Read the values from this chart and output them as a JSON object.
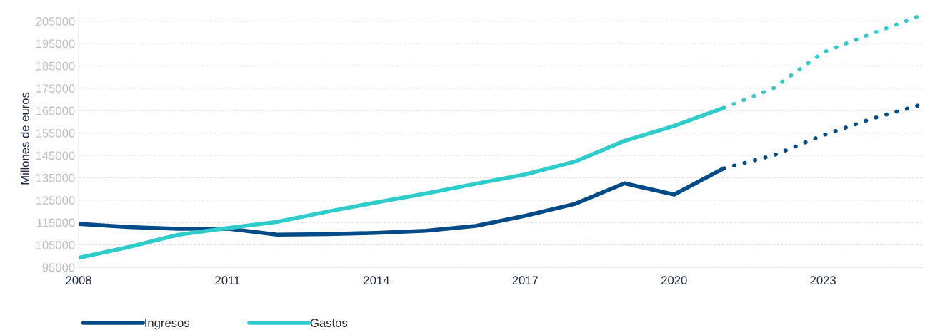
{
  "chart_data": {
    "type": "line",
    "ylabel": "Millones de euros",
    "xlim": [
      2008,
      2025
    ],
    "xticks": [
      2008,
      2011,
      2014,
      2017,
      2020,
      2023
    ],
    "ylim": [
      95000,
      210000
    ],
    "yticks": [
      95000,
      105000,
      115000,
      125000,
      135000,
      145000,
      155000,
      165000,
      175000,
      185000,
      195000,
      205000
    ],
    "grid": "y",
    "legend": "bottom left",
    "marker": "none",
    "series": [
      {
        "name": "Ingresos",
        "color": "#004a87",
        "line_style": "solid",
        "x": [
          2008,
          2009,
          2010,
          2011,
          2012,
          2013,
          2014,
          2015,
          2016,
          2017,
          2018,
          2019,
          2020,
          2021
        ],
        "values": [
          114400,
          113000,
          112200,
          112300,
          109600,
          109800,
          110400,
          111300,
          113500,
          118000,
          123300,
          132500,
          127500,
          139200
        ]
      },
      {
        "name": "Gastos",
        "color": "#2ecdcb",
        "line_style": "solid",
        "x": [
          2008,
          2009,
          2010,
          2011,
          2012,
          2013,
          2014,
          2015,
          2016,
          2017,
          2018,
          2019,
          2020,
          2021
        ],
        "values": [
          99200,
          104000,
          109500,
          112500,
          115300,
          119800,
          124000,
          128000,
          132300,
          136500,
          142200,
          151500,
          158200,
          166200
        ]
      },
      {
        "color": "#004a87",
        "line_style": "dotted",
        "x": [
          2021,
          2022,
          2023,
          2024,
          2025
        ],
        "values": [
          139200,
          145000,
          154000,
          161500,
          167800
        ]
      },
      {
        "color": "#2ecdcb",
        "line_style": "dotted",
        "x": [
          2021,
          2022,
          2023,
          2024,
          2025
        ],
        "values": [
          166200,
          175000,
          191000,
          199500,
          207800
        ]
      }
    ]
  }
}
